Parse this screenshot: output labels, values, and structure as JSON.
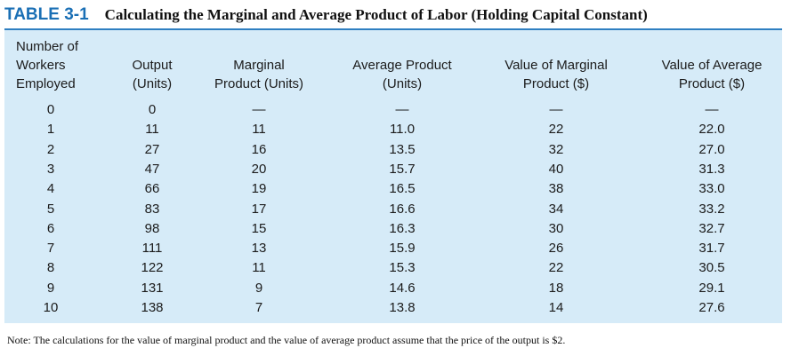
{
  "table_number": "TABLE 3-1",
  "table_title": "Calculating the Marginal and Average Product of Labor (Holding Capital Constant)",
  "headers": [
    [
      "Number of",
      "Workers",
      "Employed"
    ],
    [
      "Output",
      "(Units)"
    ],
    [
      "Marginal",
      "Product (Units)"
    ],
    [
      "Average Product",
      "(Units)"
    ],
    [
      "Value of Marginal",
      "Product ($)"
    ],
    [
      "Value of Average",
      "Product ($)"
    ]
  ],
  "rows": [
    [
      "0",
      "0",
      "—",
      "—",
      "—",
      "—"
    ],
    [
      "1",
      "11",
      "11",
      "11.0",
      "22",
      "22.0"
    ],
    [
      "2",
      "27",
      "16",
      "13.5",
      "32",
      "27.0"
    ],
    [
      "3",
      "47",
      "20",
      "15.7",
      "40",
      "31.3"
    ],
    [
      "4",
      "66",
      "19",
      "16.5",
      "38",
      "33.0"
    ],
    [
      "5",
      "83",
      "17",
      "16.6",
      "34",
      "33.2"
    ],
    [
      "6",
      "98",
      "15",
      "16.3",
      "30",
      "32.7"
    ],
    [
      "7",
      "111",
      "13",
      "15.9",
      "26",
      "31.7"
    ],
    [
      "8",
      "122",
      "11",
      "15.3",
      "22",
      "30.5"
    ],
    [
      "9",
      "131",
      "9",
      "14.6",
      "18",
      "29.1"
    ],
    [
      "10",
      "138",
      "7",
      "13.8",
      "14",
      "27.6"
    ]
  ],
  "note": "Note: The calculations for the value of marginal product and the value of average product assume that the price of the output is $2.",
  "colors": {
    "accent": "#1a6fb5",
    "panel_bg": "#d6ebf8"
  }
}
